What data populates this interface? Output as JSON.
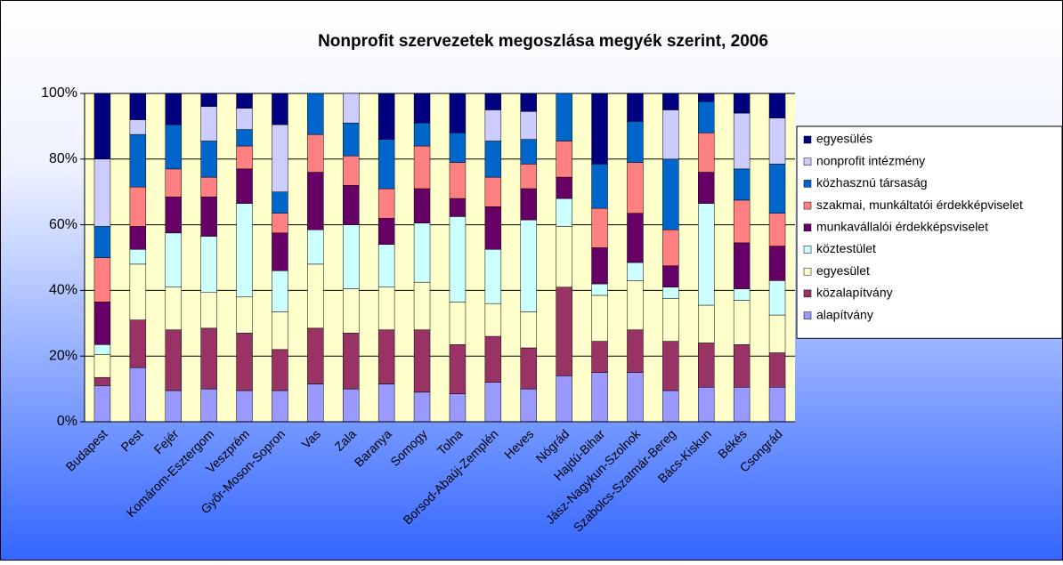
{
  "chart_data": {
    "type": "stacked_bar_100",
    "title": "Nonprofit szervezetek megoszlása megyék szerint, 2006",
    "categories": [
      "Budapest",
      "Pest",
      "Fejér",
      "Komárom-Esztergom",
      "Veszprém",
      "Győr-Moson-Sopron",
      "Vas",
      "Zala",
      "Baranya",
      "Somogy",
      "Tolna",
      "Borsod-Abaúj-Zemplén",
      "Heves",
      "Nógrád",
      "Hajdú-Bihar",
      "Jász-Nagykun-Szolnok",
      "Szabolcs-Szatmár-Bereg",
      "Bács-Kiskun",
      "Békés",
      "Csongrád"
    ],
    "series": [
      {
        "name": "alapítvány",
        "color": "#9999ff",
        "values": [
          11,
          16.5,
          9.5,
          10,
          9.5,
          9.5,
          11.5,
          10,
          11.5,
          9,
          8.5,
          12,
          10,
          14,
          15,
          15,
          9.5,
          10.5,
          10.5,
          10.5
        ]
      },
      {
        "name": "közalapítvány",
        "color": "#993366",
        "values": [
          2.5,
          14.5,
          18.5,
          18.5,
          17.5,
          12.5,
          17,
          17,
          16.5,
          19,
          15,
          14,
          12.5,
          27,
          9.5,
          13,
          15,
          13.5,
          13,
          10.5
        ]
      },
      {
        "name": "egyesület",
        "color": "#ffffcc",
        "values": [
          7,
          17,
          13,
          11,
          11,
          11.5,
          19.5,
          13.5,
          13,
          14.5,
          13,
          10,
          11,
          18.5,
          14,
          15,
          13,
          11.5,
          13.5,
          11.5
        ]
      },
      {
        "name": "köztestület",
        "color": "#ccffff",
        "values": [
          3,
          4.5,
          16.5,
          17,
          28.5,
          12.5,
          10.5,
          19.5,
          13,
          18,
          26,
          16.5,
          28,
          8.5,
          3.5,
          5.5,
          3.5,
          31,
          3.5,
          10.5
        ]
      },
      {
        "name": "munkavállalói érdekképsviselet",
        "color": "#660066",
        "values": [
          13,
          7,
          11,
          12,
          10.5,
          11.5,
          17.5,
          12,
          8,
          10.5,
          5.5,
          13,
          9.5,
          6.5,
          11,
          15,
          6.5,
          9.5,
          14,
          10.5
        ]
      },
      {
        "name": "szakmai, munkáltatói érdekképviselet",
        "color": "#ff8080",
        "values": [
          13.5,
          12,
          8.5,
          6,
          7,
          6,
          11.5,
          9,
          9,
          13,
          11,
          9,
          7.5,
          11,
          12,
          15.5,
          11,
          12,
          13,
          10
        ]
      },
      {
        "name": "közhasznú társaság",
        "color": "#0066cc",
        "values": [
          9.5,
          16,
          13.5,
          11,
          5,
          6.5,
          12.5,
          10,
          15,
          7,
          9,
          11,
          7.5,
          14.5,
          13.5,
          12.5,
          21.5,
          9.5,
          9.5,
          15
        ]
      },
      {
        "name": "nonprofit intézmény",
        "color": "#ccccff",
        "values": [
          20.5,
          4.5,
          0,
          10.5,
          6.5,
          20.5,
          0,
          9,
          0,
          0,
          0,
          9.5,
          8.5,
          0,
          0,
          0,
          15,
          0,
          17,
          14
        ]
      },
      {
        "name": "egyesülés",
        "color": "#000080",
        "values": [
          20,
          8,
          9.5,
          4,
          4.5,
          9.5,
          0,
          0,
          14,
          9,
          12,
          5,
          5.5,
          0,
          21.5,
          8.5,
          5,
          2.5,
          6,
          7.5
        ]
      }
    ],
    "ylim": [
      0,
      100
    ],
    "yticks": [
      {
        "value": 0,
        "label": "0%"
      },
      {
        "value": 20,
        "label": "20%"
      },
      {
        "value": 40,
        "label": "40%"
      },
      {
        "value": 60,
        "label": "60%"
      },
      {
        "value": 80,
        "label": "80%"
      },
      {
        "value": 100,
        "label": "100%"
      }
    ],
    "grid": true,
    "legend": "right"
  }
}
